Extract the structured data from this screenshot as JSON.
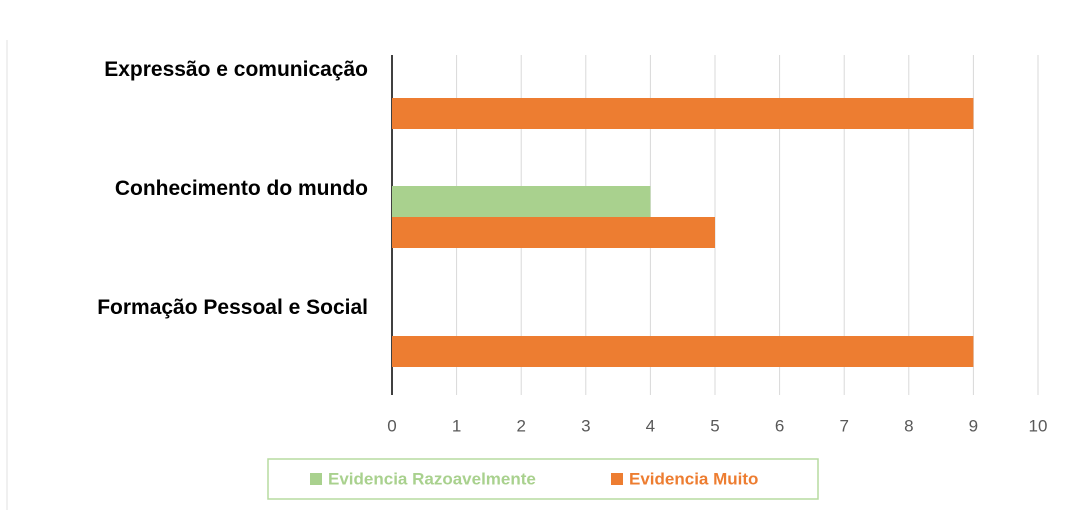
{
  "chart_data": {
    "type": "bar",
    "orientation": "horizontal",
    "categories": [
      "Expressão e comunicação",
      "Conhecimento do mundo",
      "Formação Pessoal e Social"
    ],
    "series": [
      {
        "name": "Evidencia Razoavelmente",
        "color": "#a9d18e",
        "values": [
          0,
          4,
          0
        ]
      },
      {
        "name": "Evidencia Muito",
        "color": "#ed7d31",
        "values": [
          9,
          5,
          9
        ]
      }
    ],
    "xlim": [
      0,
      10
    ],
    "xticks": [
      0,
      1,
      2,
      3,
      4,
      5,
      6,
      7,
      8,
      9,
      10
    ],
    "grid": true,
    "legend": "bottom"
  }
}
